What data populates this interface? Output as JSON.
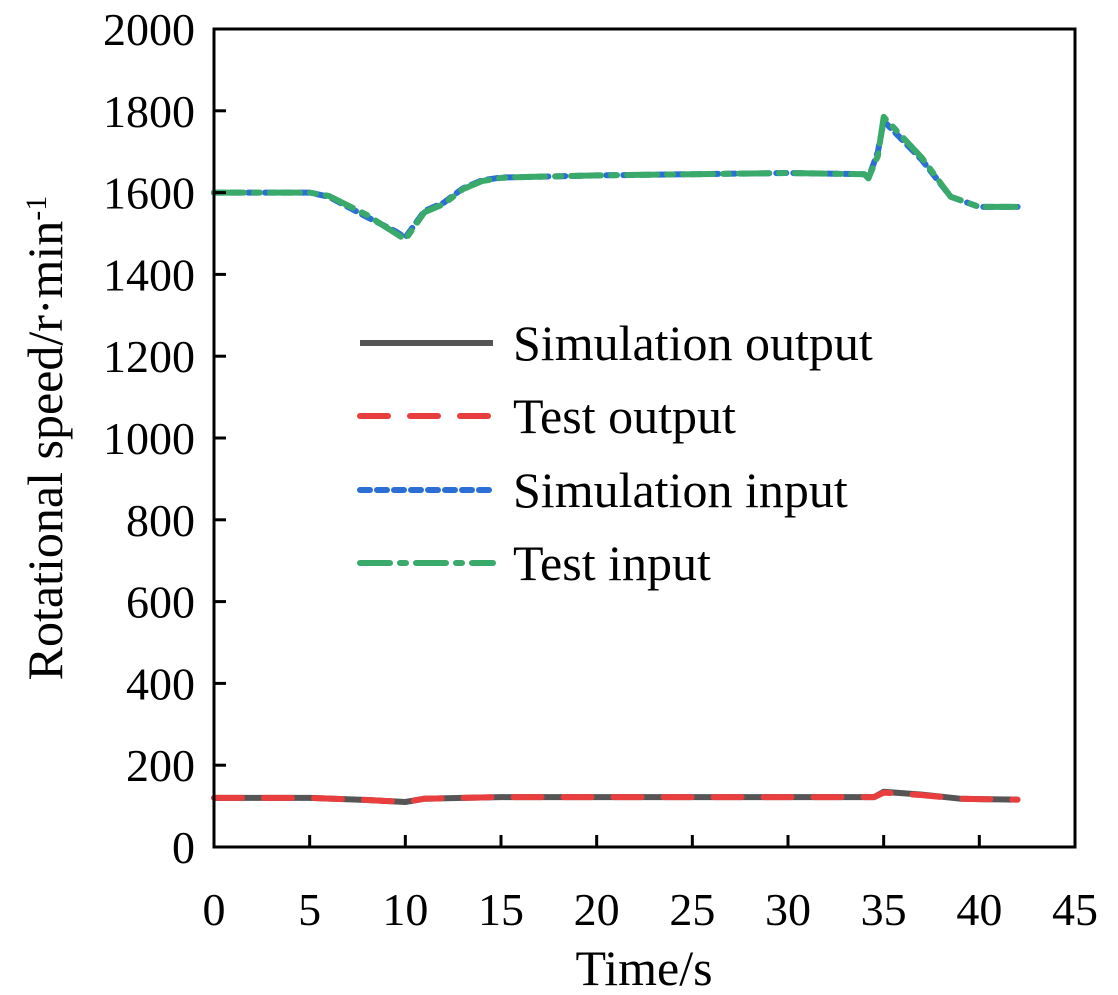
{
  "chart_data": {
    "type": "line",
    "xlabel": "Time/s",
    "ylabel": "Rotational speed/r·min",
    "ylabel_sup": "-1",
    "xlim": [
      0,
      45
    ],
    "ylim": [
      0,
      2000
    ],
    "xticks": [
      0,
      5,
      10,
      15,
      20,
      25,
      30,
      35,
      40,
      45
    ],
    "yticks": [
      0,
      200,
      400,
      600,
      800,
      1000,
      1200,
      1400,
      1600,
      1800,
      2000
    ],
    "grid": false,
    "legend_position": "center",
    "series": [
      {
        "name": "Simulation output",
        "color": "#555555",
        "style": "solid",
        "x": [
          0,
          5,
          8,
          10,
          11,
          13,
          15,
          20,
          25,
          30,
          34.5,
          35,
          37,
          39,
          40,
          42
        ],
        "y": [
          120,
          120,
          115,
          110,
          118,
          120,
          122,
          122,
          122,
          122,
          122,
          135,
          128,
          118,
          117,
          116
        ]
      },
      {
        "name": "Test output",
        "color": "#e83e3e",
        "style": "dash",
        "x": [
          0,
          5,
          8,
          10,
          11,
          13,
          15,
          20,
          25,
          30,
          34.5,
          35,
          37,
          39,
          40,
          42
        ],
        "y": [
          120,
          120,
          115,
          110,
          118,
          120,
          122,
          122,
          122,
          122,
          122,
          133,
          127,
          118,
          117,
          116
        ]
      },
      {
        "name": "Simulation input",
        "color": "#2b6fd6",
        "style": "dot",
        "x": [
          0,
          5,
          6,
          8,
          9.5,
          10,
          11,
          12,
          13,
          14,
          15,
          16,
          20,
          25,
          30,
          34,
          34.2,
          34.7,
          35,
          37,
          38.5,
          40,
          42
        ],
        "y": [
          1600,
          1600,
          1590,
          1540,
          1505,
          1490,
          1555,
          1575,
          1610,
          1630,
          1637,
          1638,
          1642,
          1645,
          1648,
          1645,
          1635,
          1700,
          1775,
          1680,
          1590,
          1565,
          1565
        ]
      },
      {
        "name": "Test input",
        "color": "#3aaa6a",
        "style": "dashdot",
        "x": [
          0,
          5,
          6,
          8,
          9.5,
          10,
          11,
          12,
          13,
          14,
          15,
          16,
          20,
          25,
          30,
          34,
          34.2,
          34.7,
          35,
          37,
          38.5,
          40,
          42
        ],
        "y": [
          1600,
          1600,
          1592,
          1545,
          1500,
          1485,
          1552,
          1572,
          1608,
          1628,
          1636,
          1638,
          1642,
          1645,
          1648,
          1645,
          1635,
          1690,
          1785,
          1685,
          1590,
          1565,
          1565
        ]
      }
    ]
  }
}
